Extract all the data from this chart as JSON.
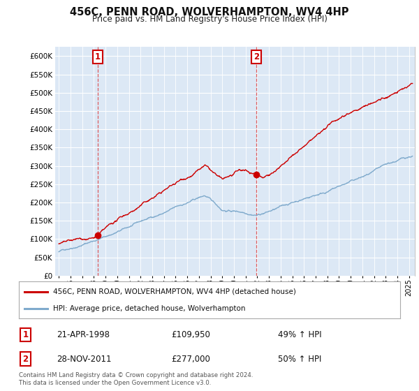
{
  "title": "456C, PENN ROAD, WOLVERHAMPTON, WV4 4HP",
  "subtitle": "Price paid vs. HM Land Registry's House Price Index (HPI)",
  "ytick_values": [
    0,
    50000,
    100000,
    150000,
    200000,
    250000,
    300000,
    350000,
    400000,
    450000,
    500000,
    550000,
    600000
  ],
  "ylim": [
    0,
    625000
  ],
  "xlim_start": 1994.7,
  "xlim_end": 2025.5,
  "purchase1_date": 1998.31,
  "purchase1_price": 109950,
  "purchase2_date": 2011.91,
  "purchase2_price": 277000,
  "annotation1": {
    "date_str": "21-APR-1998",
    "price_str": "£109,950",
    "pct_str": "49% ↑ HPI"
  },
  "annotation2": {
    "date_str": "28-NOV-2011",
    "price_str": "£277,000",
    "pct_str": "50% ↑ HPI"
  },
  "legend_label_red": "456C, PENN ROAD, WOLVERHAMPTON, WV4 4HP (detached house)",
  "legend_label_blue": "HPI: Average price, detached house, Wolverhampton",
  "footer": "Contains HM Land Registry data © Crown copyright and database right 2024.\nThis data is licensed under the Open Government Licence v3.0.",
  "red_color": "#cc0000",
  "blue_color": "#7faacc",
  "dashed_color": "#dd4444",
  "background_color": "#ffffff",
  "plot_bg_color": "#dce8f5",
  "grid_color": "#ffffff"
}
